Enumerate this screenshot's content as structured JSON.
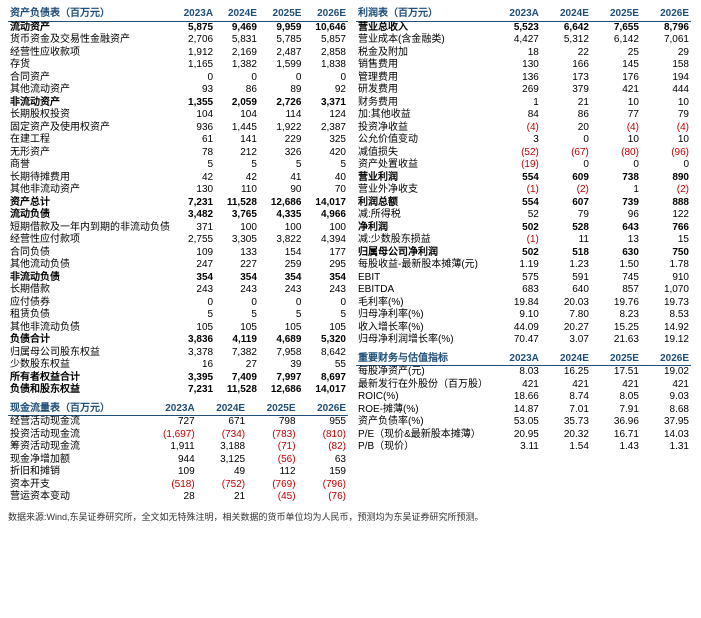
{
  "colors": {
    "header_text": "#1f4e79",
    "header_border": "#1f4e79",
    "negative": "#c00000",
    "background": "#ffffff",
    "text": "#000000"
  },
  "year_headers": [
    "2023A",
    "2024E",
    "2025E",
    "2026E"
  ],
  "tables": {
    "balance": {
      "title": "资产负债表（百万元）",
      "rows": [
        {
          "label": "流动资产",
          "v": [
            "5,875",
            "9,469",
            "9,959",
            "10,646"
          ],
          "bold": true
        },
        {
          "label": "货币资金及交易性金融资产",
          "v": [
            "2,706",
            "5,831",
            "5,785",
            "5,857"
          ]
        },
        {
          "label": "经营性应收款项",
          "v": [
            "1,912",
            "2,169",
            "2,487",
            "2,858"
          ]
        },
        {
          "label": "存货",
          "v": [
            "1,165",
            "1,382",
            "1,599",
            "1,838"
          ]
        },
        {
          "label": "合同资产",
          "v": [
            "0",
            "0",
            "0",
            "0"
          ]
        },
        {
          "label": "其他流动资产",
          "v": [
            "93",
            "86",
            "89",
            "92"
          ]
        },
        {
          "label": "非流动资产",
          "v": [
            "1,355",
            "2,059",
            "2,726",
            "3,371"
          ],
          "bold": true
        },
        {
          "label": "长期股权投资",
          "v": [
            "104",
            "104",
            "114",
            "124"
          ]
        },
        {
          "label": "固定资产及使用权资产",
          "v": [
            "936",
            "1,445",
            "1,922",
            "2,387"
          ]
        },
        {
          "label": "在建工程",
          "v": [
            "61",
            "141",
            "229",
            "325"
          ]
        },
        {
          "label": "无形资产",
          "v": [
            "78",
            "212",
            "326",
            "420"
          ]
        },
        {
          "label": "商誉",
          "v": [
            "5",
            "5",
            "5",
            "5"
          ]
        },
        {
          "label": "长期待摊费用",
          "v": [
            "42",
            "42",
            "41",
            "40"
          ]
        },
        {
          "label": "其他非流动资产",
          "v": [
            "130",
            "110",
            "90",
            "70"
          ]
        },
        {
          "label": "资产总计",
          "v": [
            "7,231",
            "11,528",
            "12,686",
            "14,017"
          ],
          "bold": true
        },
        {
          "label": "流动负债",
          "v": [
            "3,482",
            "3,765",
            "4,335",
            "4,966"
          ],
          "bold": true
        },
        {
          "label": "短期借款及一年内到期的非流动负债",
          "v": [
            "371",
            "100",
            "100",
            "100"
          ]
        },
        {
          "label": "经营性应付款项",
          "v": [
            "2,755",
            "3,305",
            "3,822",
            "4,394"
          ]
        },
        {
          "label": "合同负债",
          "v": [
            "109",
            "133",
            "154",
            "177"
          ]
        },
        {
          "label": "其他流动负债",
          "v": [
            "247",
            "227",
            "259",
            "295"
          ]
        },
        {
          "label": "非流动负债",
          "v": [
            "354",
            "354",
            "354",
            "354"
          ],
          "bold": true
        },
        {
          "label": "长期借款",
          "v": [
            "243",
            "243",
            "243",
            "243"
          ]
        },
        {
          "label": "应付债券",
          "v": [
            "0",
            "0",
            "0",
            "0"
          ]
        },
        {
          "label": "租赁负债",
          "v": [
            "5",
            "5",
            "5",
            "5"
          ]
        },
        {
          "label": "其他非流动负债",
          "v": [
            "105",
            "105",
            "105",
            "105"
          ]
        },
        {
          "label": "负债合计",
          "v": [
            "3,836",
            "4,119",
            "4,689",
            "5,320"
          ],
          "bold": true
        },
        {
          "label": "归属母公司股东权益",
          "v": [
            "3,378",
            "7,382",
            "7,958",
            "8,642"
          ]
        },
        {
          "label": "少数股东权益",
          "v": [
            "16",
            "27",
            "39",
            "55"
          ]
        },
        {
          "label": "所有者权益合计",
          "v": [
            "3,395",
            "7,409",
            "7,997",
            "8,697"
          ],
          "bold": true
        },
        {
          "label": "负债和股东权益",
          "v": [
            "7,231",
            "11,528",
            "12,686",
            "14,017"
          ],
          "bold": true
        }
      ]
    },
    "income": {
      "title": "利润表（百万元）",
      "rows": [
        {
          "label": "营业总收入",
          "v": [
            "5,523",
            "6,642",
            "7,655",
            "8,796"
          ],
          "bold": true
        },
        {
          "label": "营业成本(含金融类)",
          "v": [
            "4,427",
            "5,312",
            "6,142",
            "7,061"
          ]
        },
        {
          "label": "税金及附加",
          "v": [
            "18",
            "22",
            "25",
            "29"
          ]
        },
        {
          "label": "销售费用",
          "v": [
            "130",
            "166",
            "145",
            "158"
          ]
        },
        {
          "label": "管理费用",
          "v": [
            "136",
            "173",
            "176",
            "194"
          ]
        },
        {
          "label": "研发费用",
          "v": [
            "269",
            "379",
            "421",
            "444"
          ]
        },
        {
          "label": "财务费用",
          "v": [
            "1",
            "21",
            "10",
            "10"
          ]
        },
        {
          "label": "加:其他收益",
          "v": [
            "84",
            "86",
            "77",
            "79"
          ]
        },
        {
          "label": "投资净收益",
          "v": [
            "(4)",
            "20",
            "(4)",
            "(4)"
          ],
          "neg": [
            true,
            false,
            true,
            true
          ]
        },
        {
          "label": "公允价值变动",
          "v": [
            "3",
            "0",
            "10",
            "10"
          ]
        },
        {
          "label": "减值损失",
          "v": [
            "(52)",
            "(67)",
            "(80)",
            "(96)"
          ],
          "neg": [
            true,
            true,
            true,
            true
          ]
        },
        {
          "label": "资产处置收益",
          "v": [
            "(19)",
            "0",
            "0",
            "0"
          ],
          "neg": [
            true,
            false,
            false,
            false
          ]
        },
        {
          "label": "营业利润",
          "v": [
            "554",
            "609",
            "738",
            "890"
          ],
          "bold": true
        },
        {
          "label": "营业外净收支",
          "v": [
            "(1)",
            "(2)",
            "1",
            "(2)"
          ],
          "neg": [
            true,
            true,
            false,
            true
          ]
        },
        {
          "label": "利润总额",
          "v": [
            "554",
            "607",
            "739",
            "888"
          ],
          "bold": true
        },
        {
          "label": "减:所得税",
          "v": [
            "52",
            "79",
            "96",
            "122"
          ]
        },
        {
          "label": "净利润",
          "v": [
            "502",
            "528",
            "643",
            "766"
          ],
          "bold": true
        },
        {
          "label": "减:少数股东损益",
          "v": [
            "(1)",
            "11",
            "13",
            "15"
          ],
          "neg": [
            true,
            false,
            false,
            false
          ]
        },
        {
          "label": "归属母公司净利润",
          "v": [
            "502",
            "518",
            "630",
            "750"
          ],
          "bold": true
        },
        {
          "label": "",
          "v": [
            "",
            "",
            "",
            ""
          ]
        },
        {
          "label": "每股收益-最新股本摊薄(元)",
          "v": [
            "1.19",
            "1.23",
            "1.50",
            "1.78"
          ]
        },
        {
          "label": "",
          "v": [
            "",
            "",
            "",
            ""
          ]
        },
        {
          "label": "EBIT",
          "v": [
            "575",
            "591",
            "745",
            "910"
          ]
        },
        {
          "label": "EBITDA",
          "v": [
            "683",
            "640",
            "857",
            "1,070"
          ]
        },
        {
          "label": "",
          "v": [
            "",
            "",
            "",
            ""
          ]
        },
        {
          "label": "毛利率(%)",
          "v": [
            "19.84",
            "20.03",
            "19.76",
            "19.73"
          ]
        },
        {
          "label": "归母净利率(%)",
          "v": [
            "9.10",
            "7.80",
            "8.23",
            "8.53"
          ]
        },
        {
          "label": "",
          "v": [
            "",
            "",
            "",
            ""
          ]
        },
        {
          "label": "收入增长率(%)",
          "v": [
            "44.09",
            "20.27",
            "15.25",
            "14.92"
          ]
        },
        {
          "label": "归母净利润增长率(%)",
          "v": [
            "70.47",
            "3.07",
            "21.63",
            "19.12"
          ]
        }
      ]
    },
    "cashflow": {
      "title": "现金流量表（百万元）",
      "rows": [
        {
          "label": "经营活动现金流",
          "v": [
            "727",
            "671",
            "798",
            "955"
          ]
        },
        {
          "label": "投资活动现金流",
          "v": [
            "(1,697)",
            "(734)",
            "(783)",
            "(810)"
          ],
          "neg": [
            true,
            true,
            true,
            true
          ]
        },
        {
          "label": "筹资活动现金流",
          "v": [
            "1,911",
            "3,188",
            "(71)",
            "(82)"
          ],
          "neg": [
            false,
            false,
            true,
            true
          ]
        },
        {
          "label": "现金净增加额",
          "v": [
            "944",
            "3,125",
            "(56)",
            "63"
          ],
          "neg": [
            false,
            false,
            true,
            false
          ]
        },
        {
          "label": "折旧和摊销",
          "v": [
            "109",
            "49",
            "112",
            "159"
          ]
        },
        {
          "label": "资本开支",
          "v": [
            "(518)",
            "(752)",
            "(769)",
            "(796)"
          ],
          "neg": [
            true,
            true,
            true,
            true
          ]
        },
        {
          "label": "营运资本变动",
          "v": [
            "28",
            "21",
            "(45)",
            "(76)"
          ],
          "neg": [
            false,
            false,
            true,
            true
          ]
        }
      ]
    },
    "metrics": {
      "title": "重要财务与估值指标",
      "rows": [
        {
          "label": "每股净资产(元)",
          "v": [
            "8.03",
            "16.25",
            "17.51",
            "19.02"
          ]
        },
        {
          "label": "最新发行在外股份（百万股）",
          "v": [
            "421",
            "421",
            "421",
            "421"
          ]
        },
        {
          "label": "ROIC(%)",
          "v": [
            "18.66",
            "8.74",
            "8.05",
            "9.03"
          ]
        },
        {
          "label": "ROE-摊薄(%)",
          "v": [
            "14.87",
            "7.01",
            "7.91",
            "8.68"
          ]
        },
        {
          "label": "资产负债率(%)",
          "v": [
            "53.05",
            "35.73",
            "36.96",
            "37.95"
          ]
        },
        {
          "label": "P/E（现价&最新股本摊薄）",
          "v": [
            "20.95",
            "20.32",
            "16.71",
            "14.03"
          ]
        },
        {
          "label": "P/B（现价）",
          "v": [
            "3.11",
            "1.54",
            "1.43",
            "1.31"
          ]
        }
      ]
    }
  },
  "footnote": "数据来源:Wind,东吴证券研究所，全文如无特殊注明，相关数据的货币单位均为人民币，预测均为东吴证券研究所预测。"
}
